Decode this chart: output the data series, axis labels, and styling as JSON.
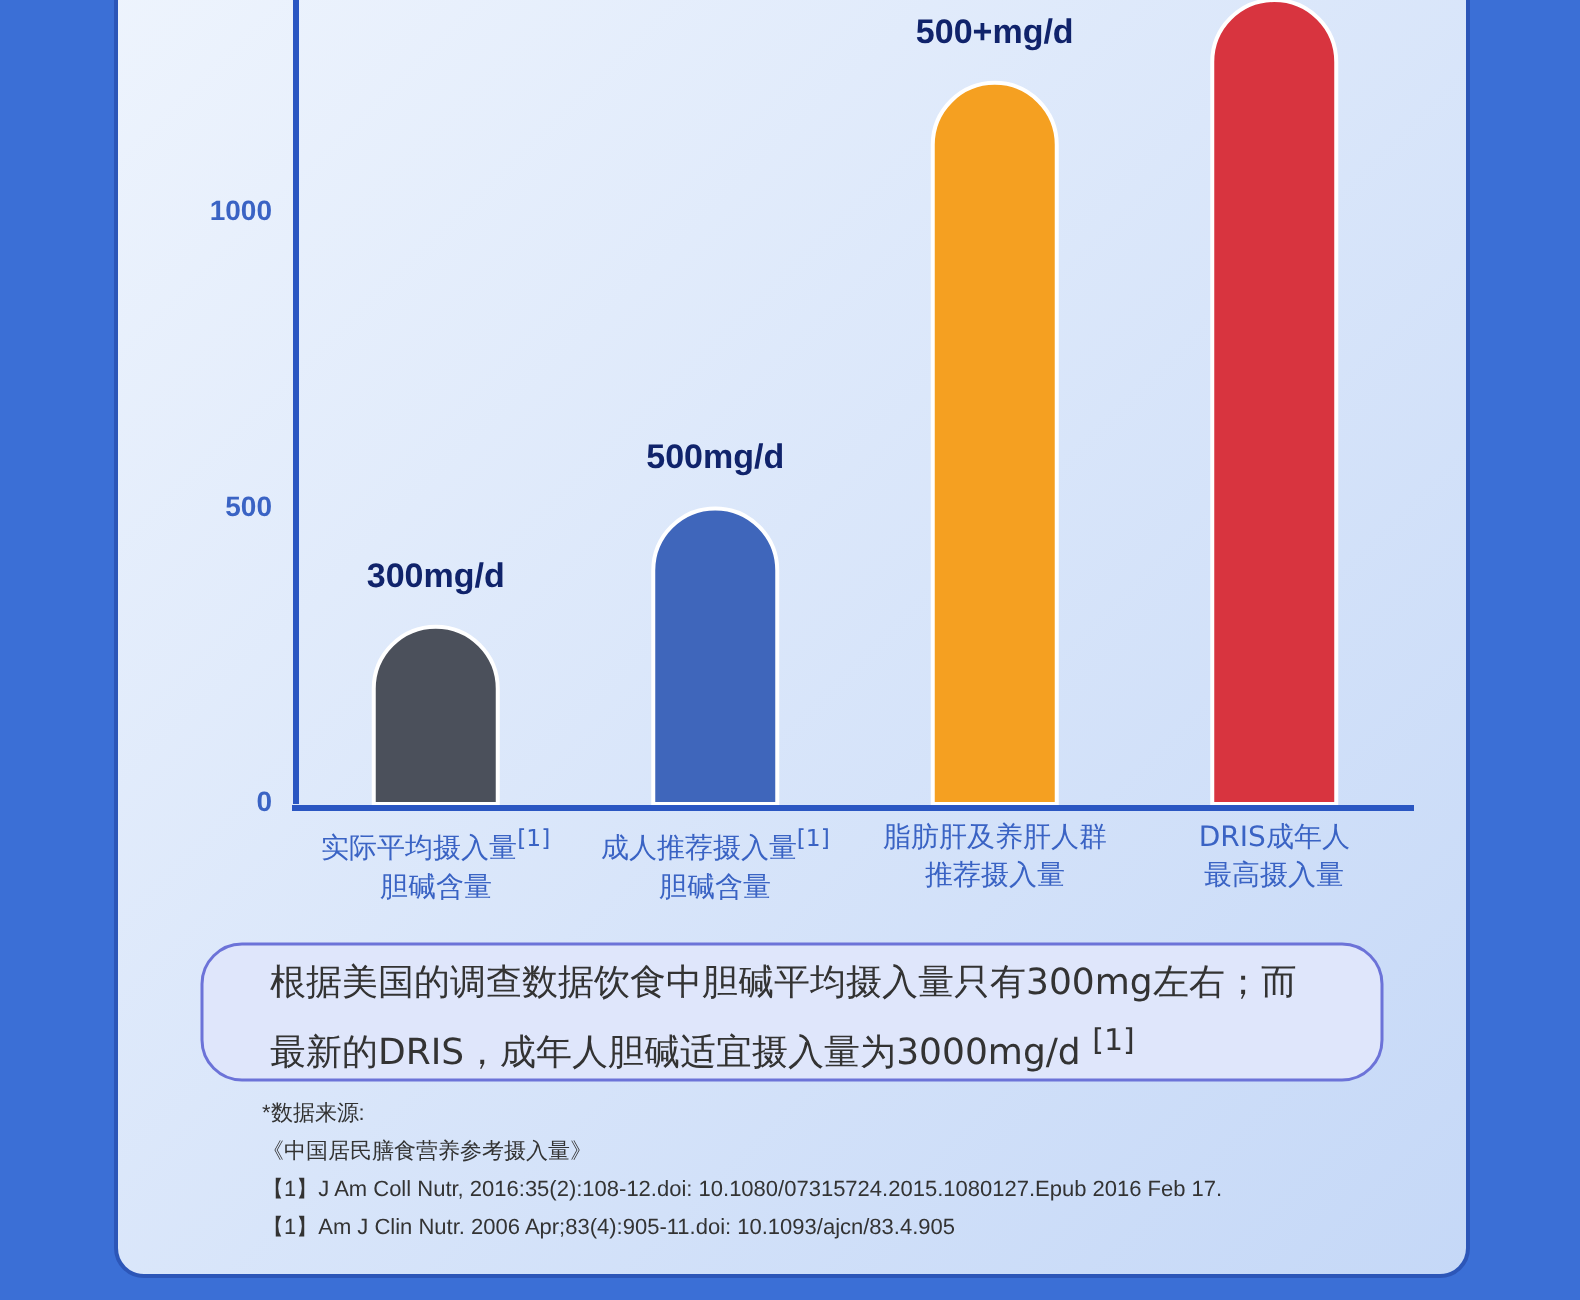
{
  "chart_data": {
    "type": "bar",
    "categories": [
      "实际平均摄入量$^{[1]}$胆碱含量",
      "成人推荐摄入量$^{[1]}$胆碱含量",
      "脂肪肝及养肝人群推荐摄入量",
      "DRIS成年人最高摄入量"
    ],
    "values": [
      300,
      500,
      1220,
      1360
    ],
    "colors": [
      "#4b505b",
      "#3f66bb",
      "#f5a021",
      "#d8343f"
    ],
    "value_labels": [
      "300mg/d",
      "500mg/d",
      "500+mg/d",
      null
    ],
    "ylim": [
      0,
      1360
    ],
    "yticks": [
      0,
      500,
      1000
    ],
    "annotations": [
      "根据美国的调查数据饮食中胆碱平均摄入量只有300mg左右；而最新的DRIS，成年人胆碱适宜摄入量为3000mg/d $^{[1]}$",
      "*数据来源:",
      "《中国居民膳食营养参考摄入量》",
      "【1】J Am Coll Nutr, 2016:35(2):108-12.doi: 10.1080/07315724.2015.1080127.Epub 2016 Feb 17.",
      "【1】Am  J Clin Nutr. 2006 Apr;83(4):905-11.doi: 10.1093/ajcn/83.4.905"
    ]
  }
}
